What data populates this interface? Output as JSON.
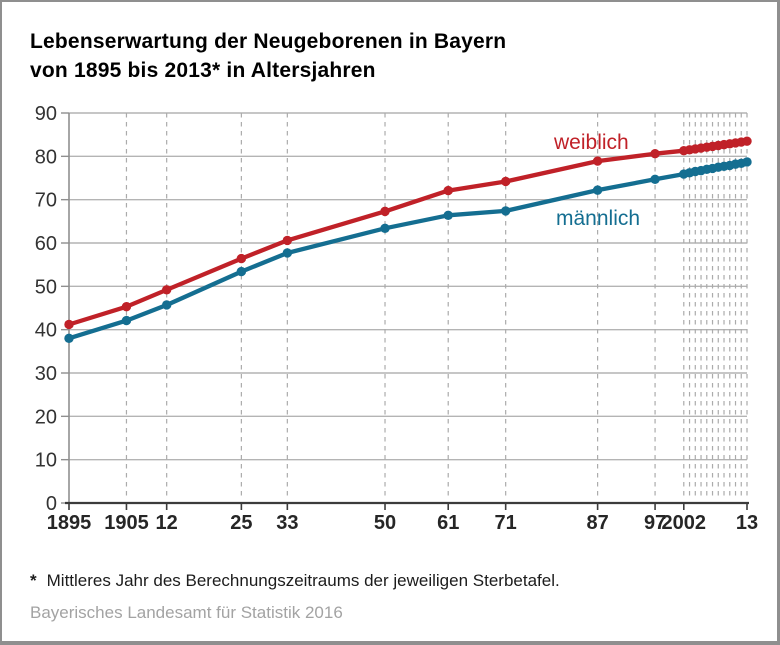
{
  "title": {
    "line1": "Lebenserwartung der Neugeborenen in Bayern",
    "line2": "von 1895 bis 2013* in Altersjahren"
  },
  "footnote": {
    "marker": "*",
    "text": "Mittleres Jahr des Berechnungszeitraums der jeweiligen Sterbetafel."
  },
  "source": {
    "text": "Bayerisches Landesamt für Statistik 2016"
  },
  "colors": {
    "weiblich": "#c02128",
    "maennlich": "#146e91",
    "grid": "#b4b4b4",
    "dashed_grid": "#ababab",
    "y_axis": "#8f8f8f",
    "x_axis": "#3b3b3b",
    "x_tick_label": "#262626",
    "y_tick_label": "#333333"
  },
  "chart_data": {
    "type": "line",
    "title": "Lebenserwartung der Neugeborenen in Bayern von 1895 bis 2013* in Altersjahren",
    "ylabel": "Altersjahre",
    "xlim": [
      1895,
      2013
    ],
    "ylim": [
      0,
      90
    ],
    "grid": "horizontal-solid, vertical-dashed-at-data-years",
    "legend_position": "inline-labels-near-lines",
    "y_ticks": [
      0,
      10,
      20,
      30,
      40,
      50,
      60,
      70,
      80,
      90
    ],
    "x_tick_labels": [
      {
        "year": 1895,
        "label": "1895"
      },
      {
        "year": 1905,
        "label": "1905"
      },
      {
        "year": 1912,
        "label": "12"
      },
      {
        "year": 1925,
        "label": "25"
      },
      {
        "year": 1933,
        "label": "33"
      },
      {
        "year": 1950,
        "label": "50"
      },
      {
        "year": 1961,
        "label": "61"
      },
      {
        "year": 1971,
        "label": "71"
      },
      {
        "year": 1987,
        "label": "87"
      },
      {
        "year": 1997,
        "label": "97"
      },
      {
        "year": 2002,
        "label": "2002"
      },
      {
        "year": 2013,
        "label": "13"
      }
    ],
    "dashed_grid_years": [
      1905,
      1912,
      1925,
      1933,
      1950,
      1961,
      1971,
      1987,
      1997,
      2002,
      2003,
      2004,
      2005,
      2006,
      2007,
      2008,
      2009,
      2010,
      2011,
      2012,
      2013
    ],
    "x": [
      1895,
      1905,
      1912,
      1925,
      1933,
      1950,
      1961,
      1971,
      1987,
      1997,
      2002,
      2003,
      2004,
      2005,
      2006,
      2007,
      2008,
      2009,
      2010,
      2011,
      2012,
      2013
    ],
    "series": [
      {
        "name": "weiblich",
        "color": "#c02128",
        "values": [
          41.2,
          45.3,
          49.2,
          56.4,
          60.6,
          67.3,
          72.1,
          74.2,
          78.9,
          80.6,
          81.3,
          81.5,
          81.7,
          81.9,
          82.1,
          82.3,
          82.5,
          82.7,
          82.9,
          83.1,
          83.3,
          83.5
        ]
      },
      {
        "name": "männlich",
        "color": "#146e91",
        "values": [
          38.0,
          42.1,
          45.7,
          53.4,
          57.7,
          63.4,
          66.4,
          67.4,
          72.2,
          74.7,
          75.9,
          76.2,
          76.5,
          76.7,
          77.0,
          77.2,
          77.5,
          77.7,
          77.9,
          78.2,
          78.4,
          78.7
        ]
      }
    ]
  }
}
